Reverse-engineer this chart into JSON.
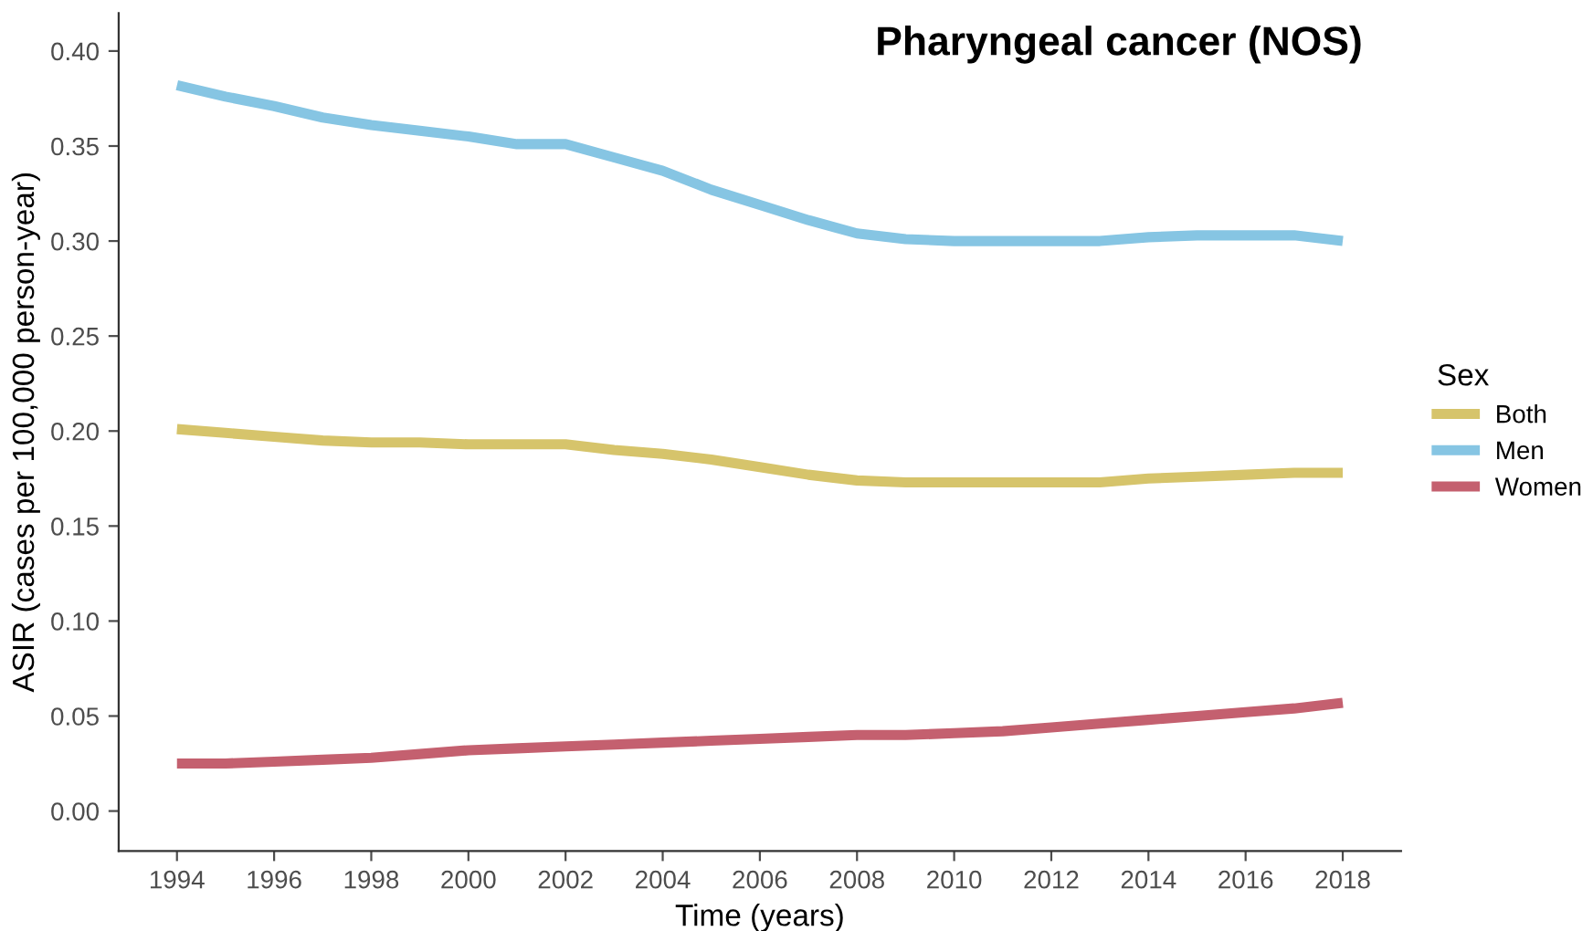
{
  "chart_data": {
    "type": "line",
    "title": "Pharyngeal cancer (NOS)",
    "xlabel": "Time (years)",
    "ylabel": "ASIR (cases per 100,000 person-year)",
    "legend_title": "Sex",
    "x": [
      1994,
      1995,
      1996,
      1997,
      1998,
      1999,
      2000,
      2001,
      2002,
      2003,
      2004,
      2005,
      2006,
      2007,
      2008,
      2009,
      2010,
      2011,
      2012,
      2013,
      2014,
      2015,
      2016,
      2017,
      2018
    ],
    "series": [
      {
        "name": "Both",
        "color": "#d6c46b",
        "values": [
          0.201,
          0.199,
          0.197,
          0.195,
          0.194,
          0.194,
          0.193,
          0.193,
          0.193,
          0.19,
          0.188,
          0.185,
          0.181,
          0.177,
          0.174,
          0.173,
          0.173,
          0.173,
          0.173,
          0.173,
          0.175,
          0.176,
          0.177,
          0.178,
          0.178
        ]
      },
      {
        "name": "Men",
        "color": "#86c5e3",
        "values": [
          0.382,
          0.376,
          0.371,
          0.365,
          0.361,
          0.358,
          0.355,
          0.351,
          0.351,
          0.344,
          0.337,
          0.327,
          0.319,
          0.311,
          0.304,
          0.301,
          0.3,
          0.3,
          0.3,
          0.3,
          0.302,
          0.303,
          0.303,
          0.303,
          0.3
        ]
      },
      {
        "name": "Women",
        "color": "#c4606f",
        "values": [
          0.025,
          0.025,
          0.026,
          0.027,
          0.028,
          0.03,
          0.032,
          0.033,
          0.034,
          0.035,
          0.036,
          0.037,
          0.038,
          0.039,
          0.04,
          0.04,
          0.041,
          0.042,
          0.044,
          0.046,
          0.048,
          0.05,
          0.052,
          0.054,
          0.057
        ]
      }
    ],
    "xlim": [
      1992.8,
      2019.2
    ],
    "xticks": [
      1994,
      1996,
      1998,
      2000,
      2002,
      2004,
      2006,
      2008,
      2010,
      2012,
      2014,
      2016,
      2018
    ],
    "ylim": [
      -0.021,
      0.42
    ],
    "yticks": [
      {
        "value": 0,
        "label": "0.00"
      },
      {
        "value": 0.05,
        "label": "0.05"
      },
      {
        "value": 0.1,
        "label": "0.10"
      },
      {
        "value": 0.15,
        "label": "0.15"
      },
      {
        "value": 0.2,
        "label": "0.20"
      },
      {
        "value": 0.25,
        "label": "0.25"
      },
      {
        "value": 0.3,
        "label": "0.30"
      },
      {
        "value": 0.35,
        "label": "0.35"
      },
      {
        "value": 0.4,
        "label": "0.40"
      }
    ],
    "grid": false,
    "legend": "right",
    "line_style": "solid",
    "marker": "none"
  }
}
